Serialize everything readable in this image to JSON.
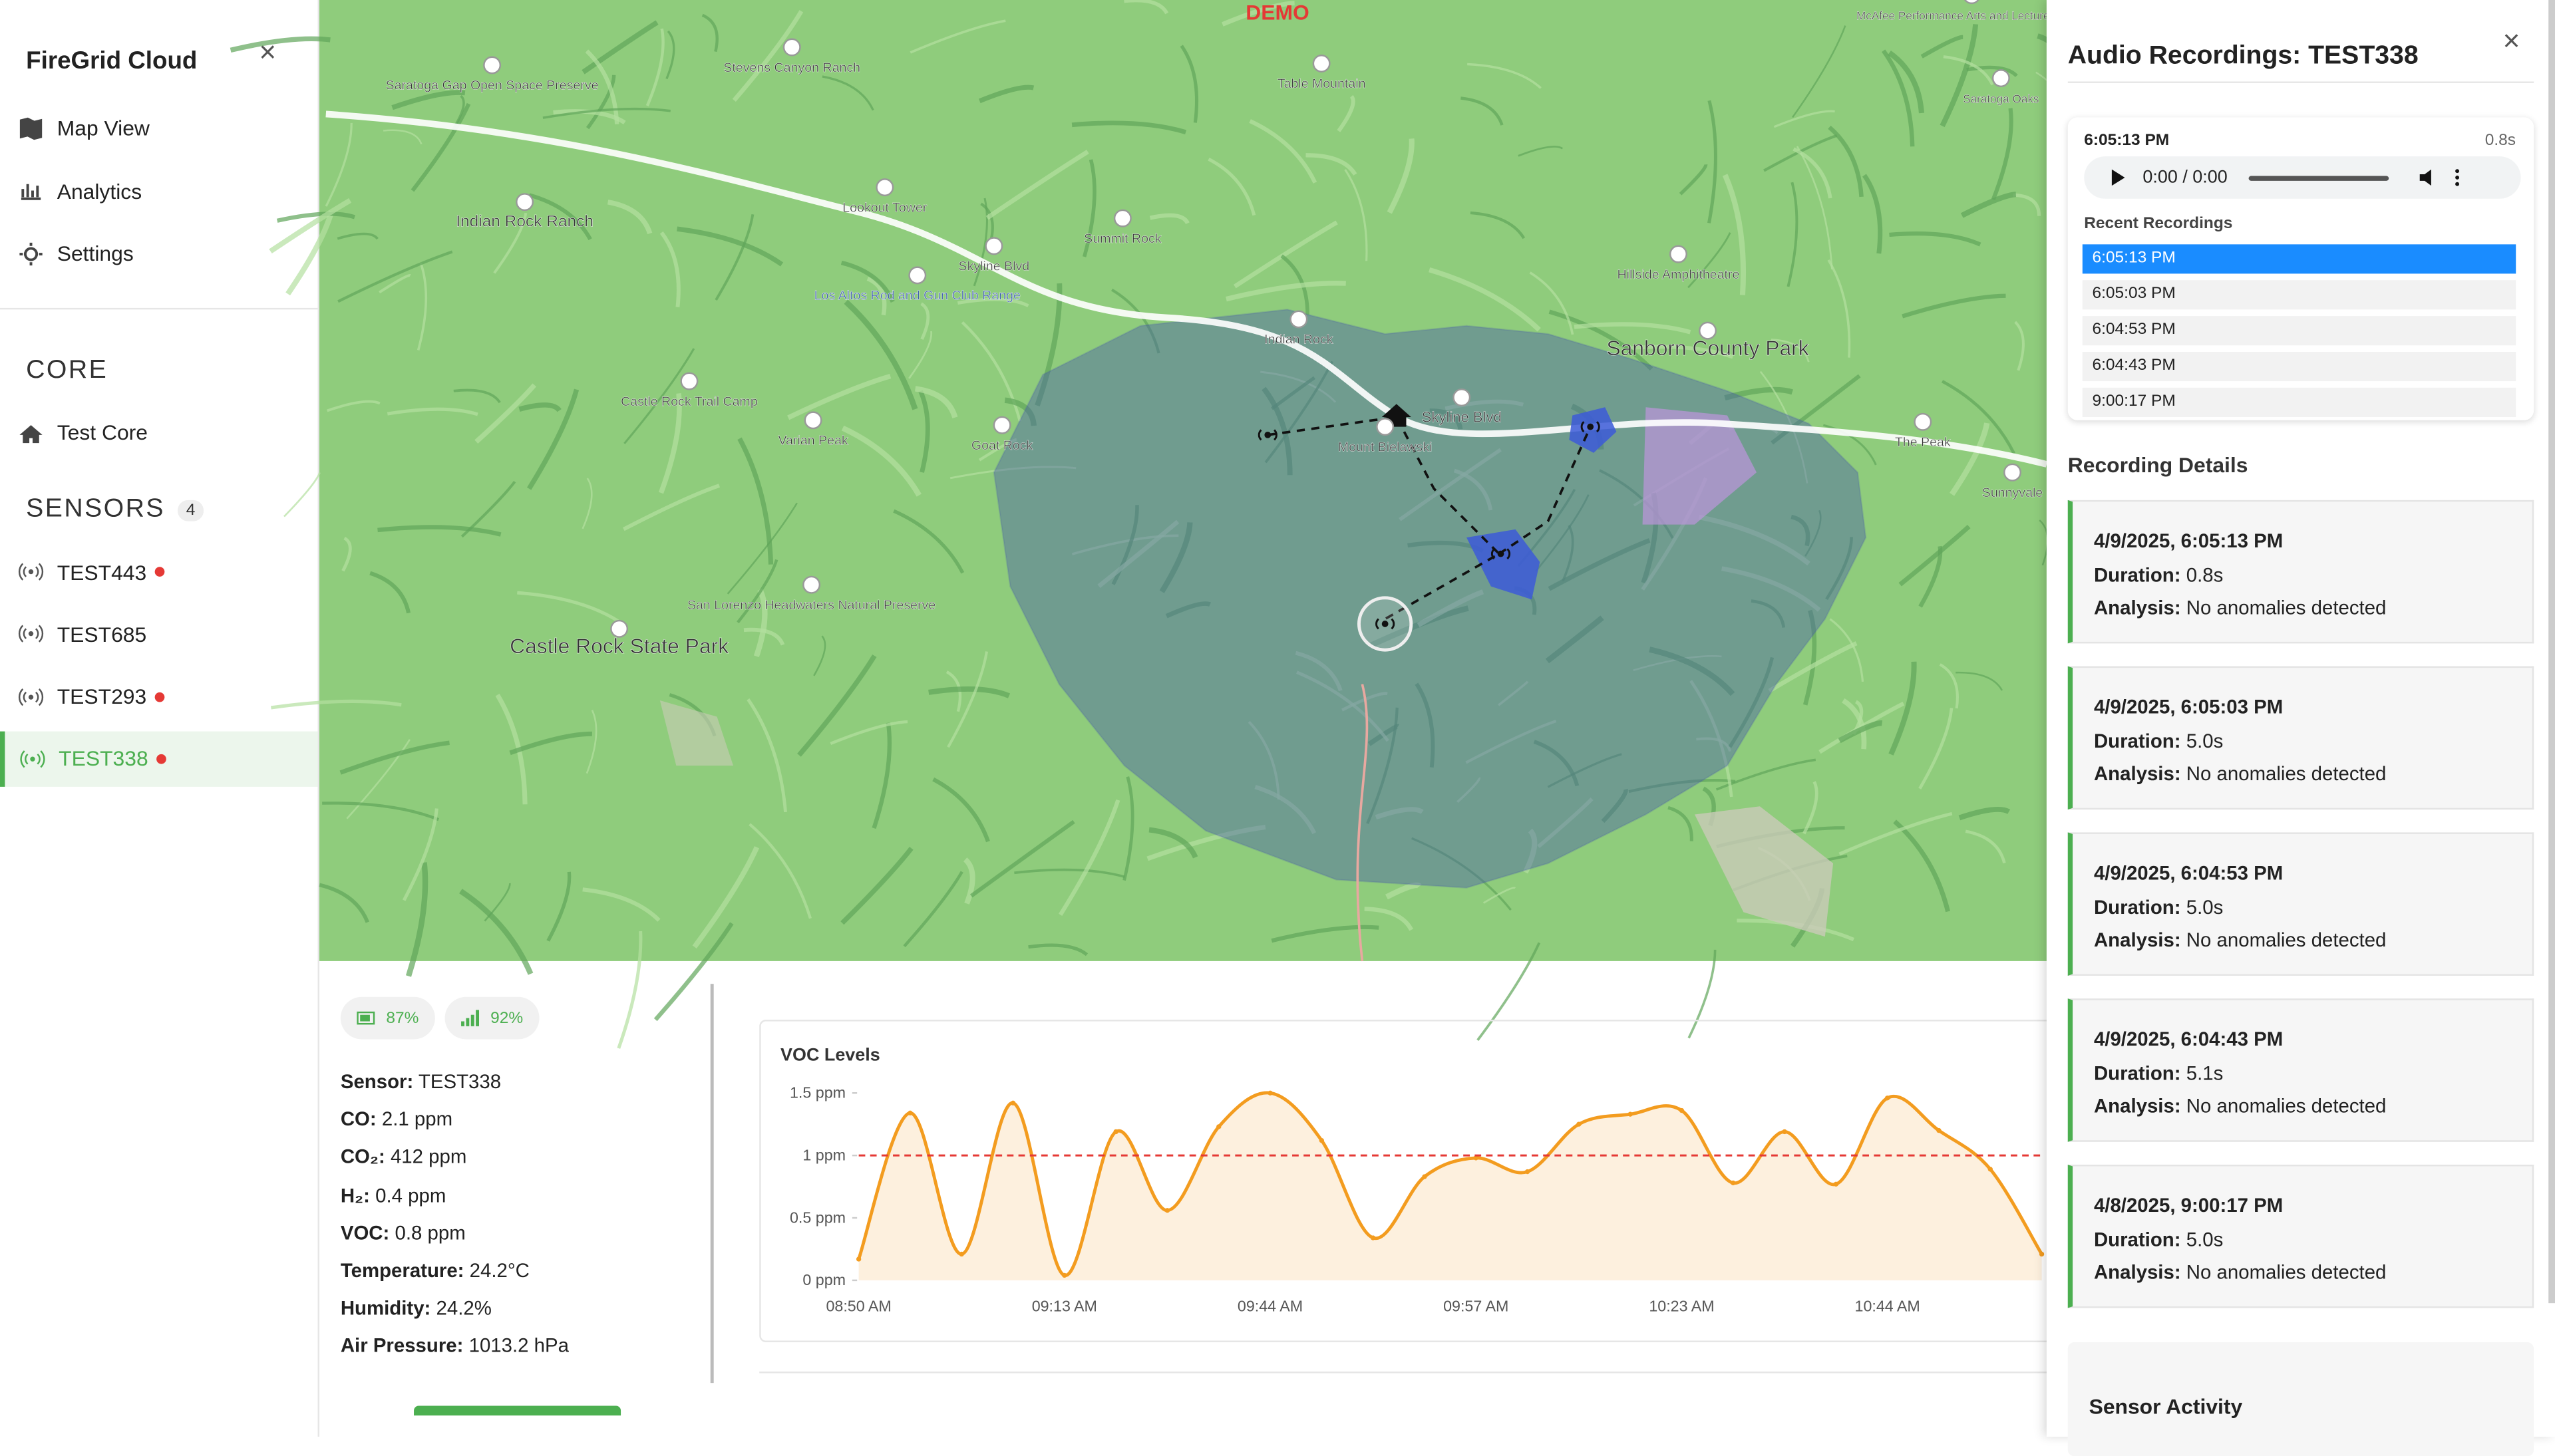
{
  "sidebar": {
    "brand": "FireGrid Cloud",
    "nav": [
      "Map View",
      "Analytics",
      "Settings"
    ],
    "core_heading": "CORE",
    "core_items": [
      "Test Core"
    ],
    "sensors_heading": "SENSORS",
    "sensors_count": 4,
    "sensors": [
      {
        "name": "TEST443",
        "alert": true
      },
      {
        "name": "TEST685",
        "alert": false
      },
      {
        "name": "TEST293",
        "alert": true
      },
      {
        "name": "TEST338",
        "alert": true,
        "active": true
      }
    ]
  },
  "map": {
    "demo": "DEMO",
    "labels": [
      "Saratoga Gap Open Space Preserve",
      "Stevens Canyon Ranch",
      "Table Mountain",
      "Indian Rock Ranch",
      "Lookout Tower",
      "Summit Rock",
      "Los Altos Rod and Gun Club Range",
      "Skyline Blvd",
      "Indian Rock",
      "Castle Rock Trail Camp",
      "Varian Peak",
      "Goat Rock",
      "Mount Bielawski",
      "Skyline Blvd",
      "Sanborn County Park",
      "Hillside Amphitheatre",
      "The Peak",
      "Sunnyvale",
      "Castle Rock State Park",
      "San Lorenzo Headwaters Natural Preserve",
      "McAfee Performance Arts and Lecture Center",
      "Saratoga Oaks"
    ]
  },
  "status": {
    "battery": "87%",
    "signal": "92%"
  },
  "readings": [
    {
      "label": "Sensor:",
      "value": "TEST338"
    },
    {
      "label": "CO:",
      "value": "2.1 ppm"
    },
    {
      "label": "CO₂:",
      "value": "412 ppm"
    },
    {
      "label": "H₂:",
      "value": "0.4 ppm"
    },
    {
      "label": "VOC:",
      "value": "0.8 ppm"
    },
    {
      "label": "Temperature:",
      "value": "24.2°C"
    },
    {
      "label": "Humidity:",
      "value": "24.2%"
    },
    {
      "label": "Air Pressure:",
      "value": "1013.2 hPa"
    }
  ],
  "chart_data": {
    "type": "line",
    "title": "VOC Levels",
    "categories": [
      "08:50 AM",
      null,
      null,
      null,
      "09:13 AM",
      null,
      null,
      null,
      "09:44 AM",
      null,
      null,
      null,
      "09:57 AM",
      null,
      null,
      null,
      "10:23 AM",
      null,
      null,
      null,
      "10:44 AM",
      null,
      null,
      null
    ],
    "series": [
      {
        "name": "VOC",
        "color": "#f39c1f",
        "values": [
          0.17,
          1.34,
          0.21,
          1.42,
          0.04,
          1.19,
          0.56,
          1.23,
          1.5,
          1.12,
          0.34,
          0.83,
          0.98,
          0.87,
          1.25,
          1.33,
          1.36,
          0.78,
          1.19,
          0.77,
          1.46,
          1.2,
          0.89,
          0.21
        ]
      }
    ],
    "threshold": 1,
    "threshold_color": "#e53935",
    "ylim": [
      0,
      1.5
    ],
    "yticks": [
      {
        "value": 0,
        "label": "0 ppm"
      },
      {
        "value": 0.5,
        "label": "0.5 ppm"
      },
      {
        "value": 1,
        "label": "1 ppm"
      },
      {
        "value": 1.5,
        "label": "1.5 ppm"
      }
    ],
    "grid": false
  },
  "panel": {
    "title": "Audio Recordings: TEST338",
    "current_time": "6:05:13 PM",
    "current_duration": "0.8s",
    "player_time": "0:00 / 0:00",
    "recent_heading": "Recent Recordings",
    "recent": [
      "6:05:13 PM",
      "6:05:03 PM",
      "6:04:53 PM",
      "6:04:43 PM",
      "9:00:17 PM"
    ],
    "details_heading": "Recording Details",
    "duration_label": "Duration:",
    "analysis_label": "Analysis:",
    "details": [
      {
        "timestamp": "4/9/2025, 6:05:13 PM",
        "duration": "0.8s",
        "analysis": "No anomalies detected"
      },
      {
        "timestamp": "4/9/2025, 6:05:03 PM",
        "duration": "5.0s",
        "analysis": "No anomalies detected"
      },
      {
        "timestamp": "4/9/2025, 6:04:53 PM",
        "duration": "5.0s",
        "analysis": "No anomalies detected"
      },
      {
        "timestamp": "4/9/2025, 6:04:43 PM",
        "duration": "5.1s",
        "analysis": "No anomalies detected"
      },
      {
        "timestamp": "4/8/2025, 9:00:17 PM",
        "duration": "5.0s",
        "analysis": "No anomalies detected"
      }
    ],
    "activity_heading": "Sensor Activity"
  }
}
